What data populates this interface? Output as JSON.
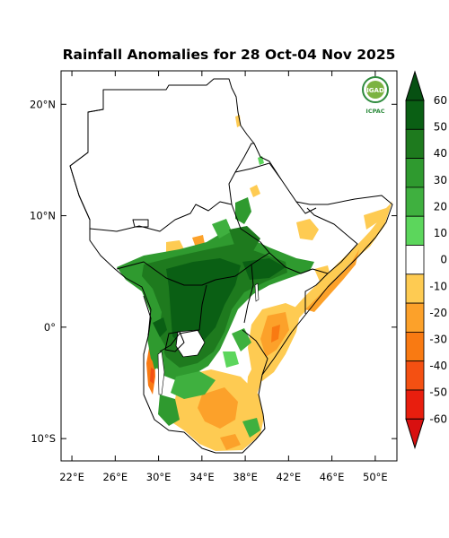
{
  "title": "Rainfall Anomalies for 28 Oct-04 Nov 2025",
  "logo": {
    "org_top": "IGAD",
    "org_bottom": "ICPAC"
  },
  "axes": {
    "lon_ticks": [
      "22°E",
      "26°E",
      "30°E",
      "34°E",
      "38°E",
      "42°E",
      "46°E",
      "50°E"
    ],
    "lat_ticks": [
      "20°N",
      "10°N",
      "0°",
      "10°S"
    ],
    "lon_range": [
      21,
      52
    ],
    "lat_range": [
      -12,
      23
    ]
  },
  "colorbar": {
    "labels": [
      "60",
      "50",
      "40",
      "30",
      "20",
      "10",
      "0",
      "-10",
      "-20",
      "-30",
      "-40",
      "-50",
      "-60"
    ],
    "colors": [
      "#0a5f14",
      "#1e7a1e",
      "#2f9a2f",
      "#3fb03f",
      "#5cd65c",
      "#ffffff",
      "#fecb52",
      "#fca12a",
      "#f97a12",
      "#f45012",
      "#e81e0e"
    ],
    "arrow_top_color": "#075012",
    "arrow_bottom_color": "#d81010"
  }
}
